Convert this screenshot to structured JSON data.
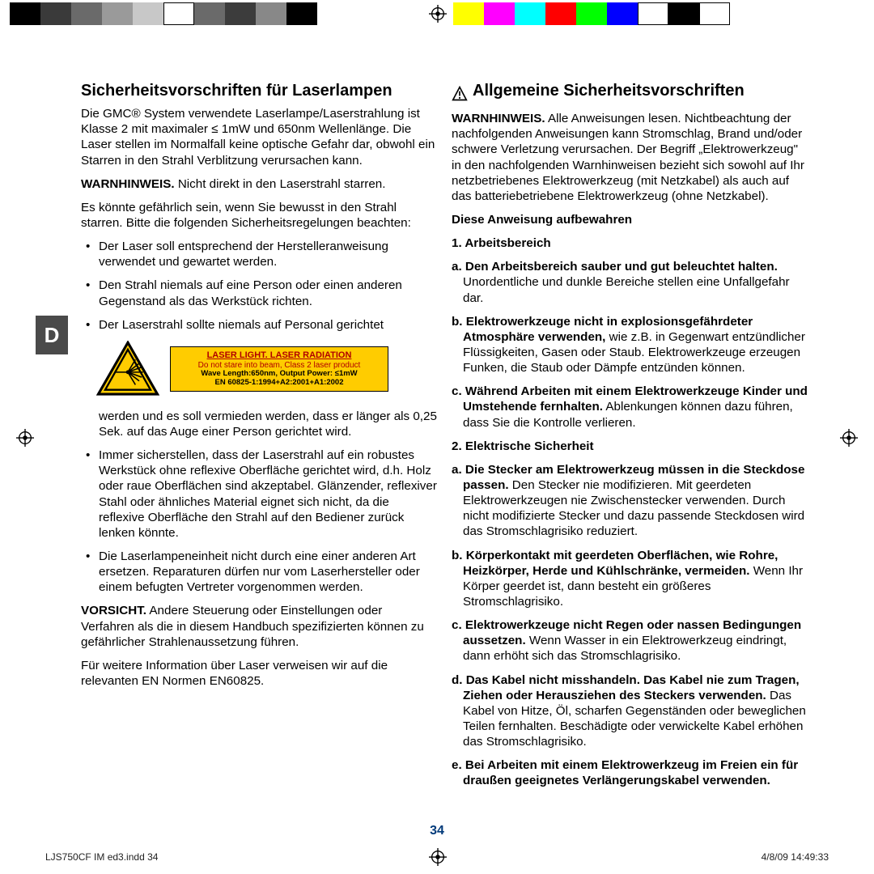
{
  "colorbar_left": [
    "#000000",
    "#3a3a3a",
    "#6a6a6a",
    "#9a9a9a",
    "#c8c8c8",
    "#ffffff",
    "#6a6a6a",
    "#3c3c3c",
    "#888888",
    "#000000"
  ],
  "colorbar_right": [
    "#ffff00",
    "#ff00ff",
    "#00ffff",
    "#ff0000",
    "#00ff00",
    "#0000ff",
    "#ffffff",
    "#000000",
    "#ffffff"
  ],
  "tab": "D",
  "left": {
    "title": "Sicherheitsvorschriften für Laserlampen",
    "p1": "Die GMC® System verwendete Laserlampe/Laserstrahlung ist Klasse 2 mit maximaler ≤ 1mW und 650nm Wellenlänge. Die Laser stellen im Normalfall keine optische Gefahr dar, obwohl ein Starren in den Strahl Verblitzung verursachen kann.",
    "p2a": "WARNHINWEIS.",
    "p2b": " Nicht direkt in den Laserstrahl starren.",
    "p3": "Es könnte gefährlich sein, wenn Sie bewusst in den Strahl starren. Bitte die folgenden Sicherheitsregelungen beachten:",
    "b1": "Der Laser soll entsprechend der Herstelleranweisung verwendet und gewartet werden.",
    "b2": "Den Strahl niemals auf eine Person oder einen anderen Gegenstand als das Werkstück richten.",
    "b3": "Der Laserstrahl sollte niemals auf Personal gerichtet",
    "label": {
      "l1": "LASER LIGHT. LASER RADIATION",
      "l2": "Do not stare into beam, Class 2 laser product",
      "l3": "Wave Length:650nm, Output Power: ≤1mW",
      "l4": "EN 60825-1:1994+A2:2001+A1:2002"
    },
    "b3b": "werden und es soll vermieden werden, dass er länger als 0,25 Sek. auf das Auge einer Person gerichtet wird.",
    "b4": "Immer sicherstellen, dass der Laserstrahl auf ein robustes Werkstück ohne reflexive Oberfläche gerichtet wird, d.h. Holz oder raue Oberflächen sind akzeptabel. Glänzender, reflexiver Stahl oder ähnliches Material eignet sich nicht, da die reflexive Oberfläche den Strahl auf den Bediener zurück lenken könnte.",
    "b5": "Die Laserlampeneinheit nicht durch eine einer anderen Art ersetzen.  Reparaturen dürfen nur vom Laserhersteller oder einem befugten Vertreter vorgenommen werden.",
    "p4a": "VORSICHT.",
    "p4b": " Andere Steuerung oder Einstellungen oder Verfahren als die in diesem Handbuch spezifizierten können zu gefährlicher Strahlenaussetzung führen.",
    "p5": "Für weitere Information über Laser verweisen wir auf die relevanten EN Normen EN60825."
  },
  "right": {
    "title": "Allgemeine Sicherheitsvorschriften",
    "p1a": "WARNHINWEIS.",
    "p1b": " Alle Anweisungen lesen.  Nichtbeachtung der nachfolgenden Anweisungen kann Stromschlag, Brand und/oder schwere Verletzung verursachen. Der Begriff „Elektrowerkzeug\" in den nachfolgenden Warnhinweisen bezieht sich sowohl auf Ihr netzbetriebenes Elektrowerkzeug (mit Netzkabel) als auch auf das batteriebetriebene Elektrowerkzeug (ohne Netzkabel).",
    "keep": "Diese Anweisung aufbewahren",
    "s1": "1. Arbeitsbereich",
    "a1a": "a. Den Arbeitsbereich sauber und gut beleuchtet halten.",
    "a1b": " Unordentliche und dunkle Bereiche stellen eine Unfallgefahr dar.",
    "a2a": "b. Elektrowerkzeuge nicht in explosionsgefährdeter Atmosphäre verwenden,",
    "a2b": " wie z.B. in Gegenwart entzündlicher Flüssigkeiten, Gasen oder Staub. Elektrowerkzeuge erzeugen Funken, die Staub oder Dämpfe entzünden können.",
    "a3a": "c. Während Arbeiten mit einem Elektrowerkzeuge Kinder und Umstehende fernhalten.",
    "a3b": " Ablenkungen können dazu führen, dass Sie die Kontrolle verlieren.",
    "s2": "2. Elektrische Sicherheit",
    "e1a": "a. Die Stecker am Elektrowerkzeug müssen in die Steckdose passen.",
    "e1b": " Den Stecker nie modifizieren. Mit geerdeten Elektrowerkzeugen nie Zwischenstecker verwenden. Durch nicht modifizierte Stecker und dazu passende Steckdosen wird das Stromschlagrisiko reduziert.",
    "e2a": "b. Körperkontakt mit geerdeten Oberflächen, wie Rohre, Heizkörper, Herde und Kühlschränke, vermeiden.",
    "e2b": " Wenn Ihr Körper geerdet ist, dann besteht ein größeres Stromschlagrisiko.",
    "e3a": "c. Elektrowerkzeuge nicht Regen oder nassen Bedingungen aussetzen.",
    "e3b": " Wenn Wasser in ein Elektrowerkzeug eindringt, dann erhöht sich das Stromschlagrisiko.",
    "e4a": "d. Das Kabel nicht misshandeln.  Das Kabel nie zum Tragen, Ziehen oder Herausziehen des Steckers verwenden.",
    "e4b": " Das Kabel von Hitze, Öl, scharfen Gegenständen oder beweglichen Teilen fernhalten. Beschädigte oder verwickelte Kabel erhöhen das Stromschlagrisiko.",
    "e5a": "e. Bei Arbeiten mit einem Elektrowerkzeug im Freien ein für draußen geeignetes Verlängerungskabel verwenden."
  },
  "pagenum": "34",
  "footer_left": "LJS750CF IM ed3.indd   34",
  "footer_right": "4/8/09   14:49:33"
}
